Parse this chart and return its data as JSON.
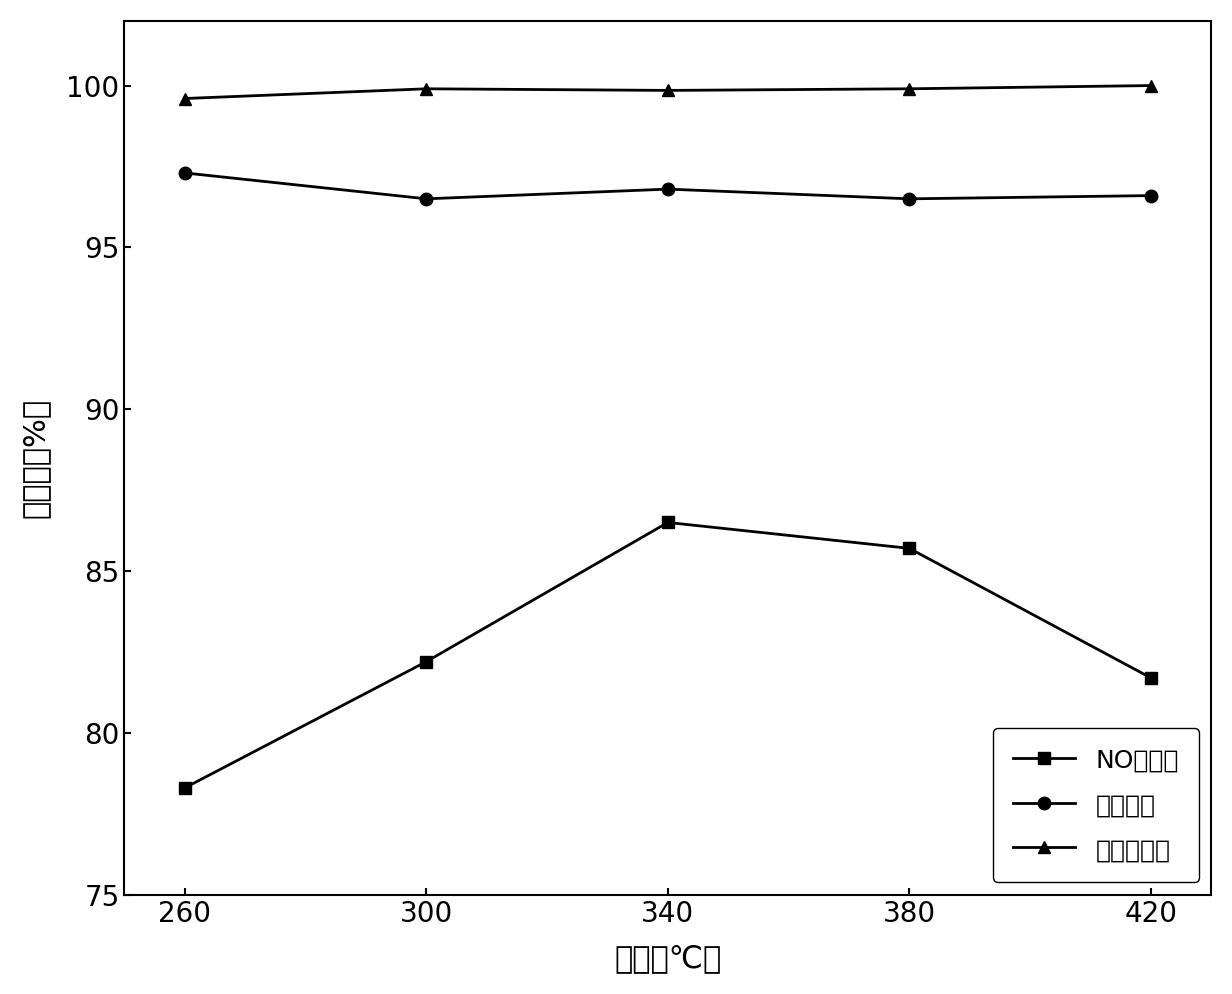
{
  "x": [
    260,
    300,
    340,
    380,
    420
  ],
  "NO_conversion": [
    78.3,
    82.2,
    86.5,
    85.7,
    81.7
  ],
  "benzene_conversion": [
    97.3,
    96.5,
    96.8,
    96.5,
    96.6
  ],
  "toluene_conversion": [
    99.6,
    99.9,
    99.85,
    99.9,
    100.0
  ],
  "xlabel": "温度（℃）",
  "ylabel": "转化率（%）",
  "legend_NO": "NO转化率",
  "legend_benzene": "苯转化率",
  "legend_toluene": "甲苯转化率",
  "xlim": [
    250,
    430
  ],
  "ylim": [
    75,
    102
  ],
  "yticks": [
    75,
    80,
    85,
    90,
    95,
    100
  ],
  "xticks": [
    260,
    300,
    340,
    380,
    420
  ],
  "line_color": "#000000",
  "marker_square": "s",
  "marker_circle": "o",
  "marker_triangle": "^",
  "marker_size": 9,
  "line_width": 2.0,
  "background_color": "#ffffff"
}
